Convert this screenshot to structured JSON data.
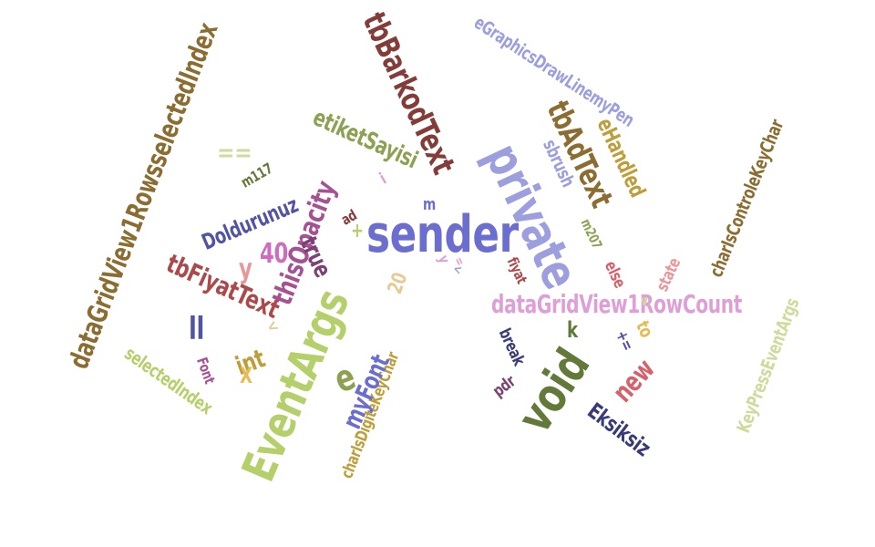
{
  "words": [
    {
      "text": "sender",
      "color": "#6b6ecf"
    },
    {
      "text": "private",
      "color": "#9c9ede"
    },
    {
      "text": "void",
      "color": "#637939"
    },
    {
      "text": "EventArgs",
      "color": "#b5cf6b"
    },
    {
      "text": "dataGridView1RowsselectedIndex",
      "color": "#8c6d31"
    },
    {
      "text": "tbBarkodText",
      "color": "#843c39"
    },
    {
      "text": "eGraphicsDrawLinemyPen",
      "color": "#9c9ede"
    },
    {
      "text": "tbAdText",
      "color": "#8c6d31"
    },
    {
      "text": "eHandled",
      "color": "#bd9e39"
    },
    {
      "text": "sbrush",
      "color": "#9c9ede"
    },
    {
      "text": "etiketSayisi",
      "color": "#8ca252"
    },
    {
      "text": "thisOpacity",
      "color": "#a55194"
    },
    {
      "text": "tbFiyatText",
      "color": "#ad494a"
    },
    {
      "text": "dataGridView1RowCount",
      "color": "#de9ed6"
    },
    {
      "text": "charIsControleKeyChar",
      "color": "#8c6d31"
    },
    {
      "text": "KeyPressEventArgs",
      "color": "#cedb9c"
    },
    {
      "text": "charIsDigiteKeyChar",
      "color": "#bd9e39"
    },
    {
      "text": "Doldurunuz",
      "color": "#5254a3"
    },
    {
      "text": "true",
      "color": "#7b4173"
    },
    {
      "text": "myFont",
      "color": "#6b6ecf"
    },
    {
      "text": "new",
      "color": "#d6616b"
    },
    {
      "text": "Eksiksiz",
      "color": "#393b79"
    },
    {
      "text": "selectedIndex",
      "color": "#b5cf6b"
    },
    {
      "text": "int",
      "color": "#bd9e39"
    },
    {
      "text": "e",
      "color": "#8ca252"
    },
    {
      "text": "==",
      "color": "#cedb9c"
    },
    {
      "text": "y",
      "color": "#e7969c"
    },
    {
      "text": "40",
      "color": "#ce6dbd"
    },
    {
      "text": "m117",
      "color": "#637939"
    },
    {
      "text": "m207",
      "color": "#8ca252"
    },
    {
      "text": "else",
      "color": "#d6616b"
    },
    {
      "text": "state",
      "color": "#e7969c"
    },
    {
      "text": "fiyat",
      "color": "#ad494a"
    },
    {
      "text": "break",
      "color": "#393b79"
    },
    {
      "text": "pdr",
      "color": "#7b4173"
    },
    {
      "text": "Font",
      "color": "#a55194"
    },
    {
      "text": "X",
      "color": "#e7ba52"
    },
    {
      "text": "ll",
      "color": "#5254a3"
    },
    {
      "text": "to",
      "color": "#e7ba52"
    },
    {
      "text": "+=",
      "color": "#5254a3"
    },
    {
      "text": "k",
      "color": "#637939"
    },
    {
      "text": "20",
      "color": "#e7cb94"
    },
    {
      "text": "ad",
      "color": "#843c39"
    },
    {
      "text": "+",
      "color": "#b5cf6b"
    },
    {
      "text": "m",
      "color": "#6b6ecf"
    },
    {
      "text": "i",
      "color": "#de9ed6"
    },
    {
      "text": "y",
      "color": "#de9ed6"
    },
    {
      "text": "v",
      "color": "#cedb9c"
    },
    {
      "text": "<",
      "color": "#e7cb94"
    },
    {
      "text": "<",
      "color": "#9c9ede"
    },
    {
      "text": "=",
      "color": "#de9ed6"
    }
  ]
}
